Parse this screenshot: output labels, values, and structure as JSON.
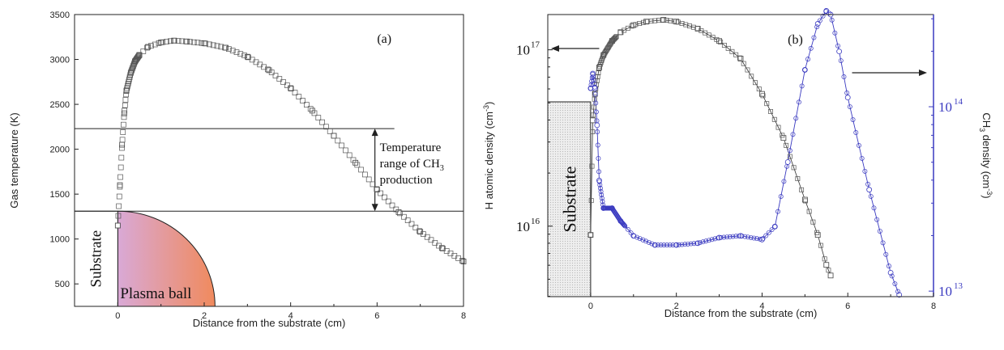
{
  "chart_data": [
    {
      "type": "scatter",
      "panel_label": "(a)",
      "xlabel": "Distance from the substrate (cm)",
      "ylabel": "Gas temperature (K)",
      "xlim": [
        -1,
        8
      ],
      "ylim": [
        250,
        3500
      ],
      "xticks": [
        "0",
        "2",
        "4",
        "6",
        "8"
      ],
      "yticks": [
        "500",
        "1000",
        "1500",
        "2000",
        "2500",
        "3000",
        "3500"
      ],
      "series": [
        {
          "marker": "square",
          "x": [
            0,
            0.05,
            0.1,
            0.15,
            0.2,
            0.3,
            0.4,
            0.5,
            0.7,
            1.0,
            1.3,
            1.6,
            2.0,
            2.5,
            3.0,
            3.5,
            4.0,
            4.5,
            5.0,
            5.5,
            6.0,
            6.5,
            7.0,
            7.5,
            8.0
          ],
          "y": [
            1150,
            1600,
            2050,
            2400,
            2650,
            2850,
            2980,
            3050,
            3140,
            3190,
            3210,
            3200,
            3180,
            3130,
            3030,
            2880,
            2680,
            2430,
            2150,
            1850,
            1550,
            1300,
            1080,
            900,
            750
          ]
        }
      ],
      "reference_lines_y": [
        2230,
        1310
      ],
      "annotations": {
        "range_text": [
          "Temperature",
          "range of CH",
          "production"
        ],
        "range_subscript": "3",
        "substrate": "Substrate",
        "plasma": "Plasma ball"
      },
      "colors": {
        "plasma_left": "#d9a9d6",
        "plasma_right": "#f08a5d"
      }
    },
    {
      "type": "scatter",
      "panel_label": "(b)",
      "xlabel": "Distance from the substrate (cm)",
      "ylabel_left": "H atomic density (cm",
      "ylabel_left_sup": "-3",
      "ylabel_right_main": "CH",
      "ylabel_right_sub": "3",
      "ylabel_right_rest": " density (cm",
      "ylabel_right_sup": "-3",
      "xlim": [
        -1,
        8
      ],
      "left_log_range": [
        15.6,
        17.2
      ],
      "right_log_range": [
        12.97,
        14.5
      ],
      "xticks": [
        "0",
        "2",
        "4",
        "6",
        "8"
      ],
      "left_ticks": [
        {
          "base": "10",
          "exp": "16",
          "log": 16
        },
        {
          "base": "10",
          "exp": "17",
          "log": 17
        }
      ],
      "right_ticks": [
        {
          "base": "10",
          "exp": "13",
          "log": 13
        },
        {
          "base": "10",
          "exp": "14",
          "log": 14
        }
      ],
      "series": [
        {
          "axis": "left",
          "marker": "square",
          "x": [
            0,
            0.05,
            0.1,
            0.2,
            0.3,
            0.5,
            0.7,
            1.0,
            1.3,
            1.7,
            2.0,
            2.5,
            3.0,
            3.5,
            4.0,
            4.5,
            5.0,
            5.3,
            5.5,
            5.6
          ],
          "y_log": [
            15.95,
            16.6,
            16.75,
            16.9,
            16.97,
            17.05,
            17.1,
            17.14,
            17.16,
            17.17,
            17.16,
            17.12,
            17.05,
            16.95,
            16.75,
            16.5,
            16.15,
            15.95,
            15.78,
            15.72
          ]
        },
        {
          "axis": "right",
          "marker": "circle",
          "color": "#3a3ac0",
          "x": [
            0,
            0.05,
            0.1,
            0.15,
            0.2,
            0.3,
            0.5,
            0.7,
            1.0,
            1.5,
            2.0,
            2.5,
            3.0,
            3.5,
            4.0,
            4.3,
            4.6,
            5.0,
            5.3,
            5.5,
            5.6,
            5.8,
            6.0,
            6.5,
            7.0,
            7.2
          ],
          "y_log": [
            14.1,
            14.18,
            14.1,
            13.9,
            13.6,
            13.45,
            13.45,
            13.38,
            13.3,
            13.25,
            13.25,
            13.26,
            13.29,
            13.3,
            13.28,
            13.35,
            13.7,
            14.2,
            14.45,
            14.52,
            14.5,
            14.3,
            14.05,
            13.55,
            13.1,
            12.98
          ]
        }
      ],
      "annotations": {
        "substrate": "Substrate"
      },
      "colors": {
        "right_axis": "#3a3ac0",
        "substrate_fill": "#e7e7e7"
      }
    }
  ]
}
